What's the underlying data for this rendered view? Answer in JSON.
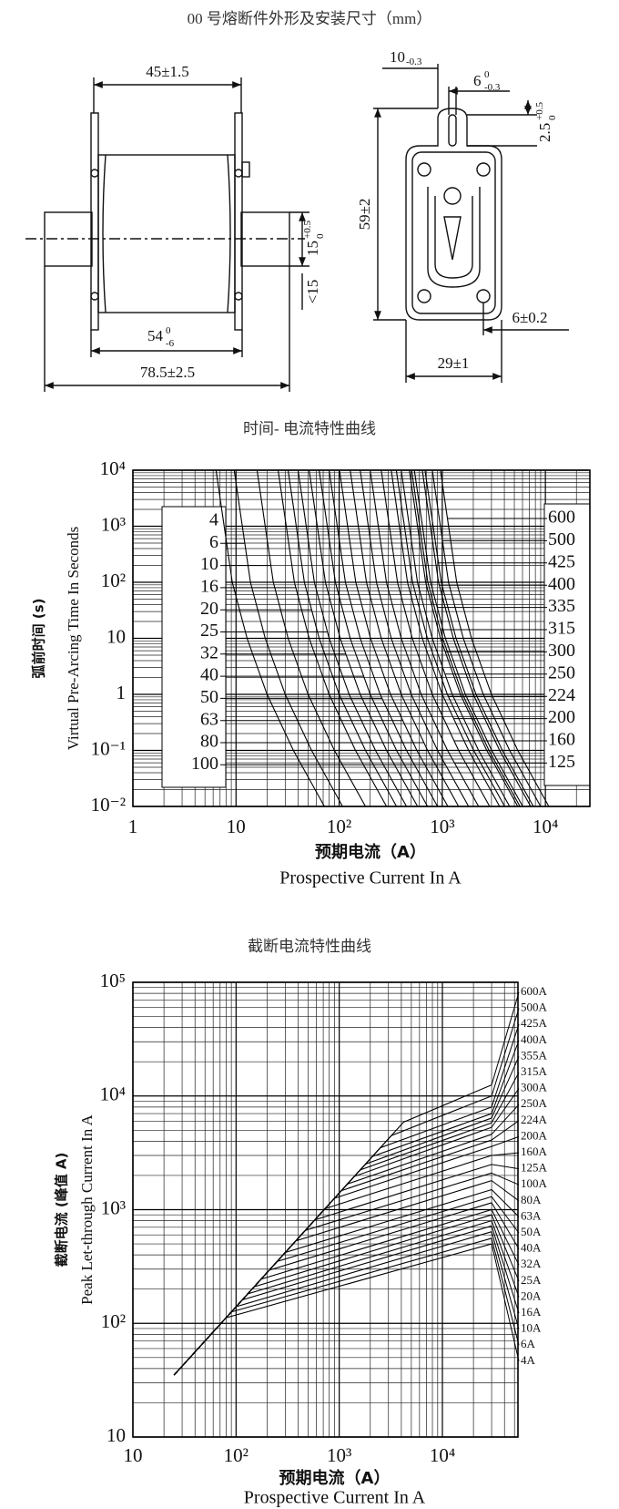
{
  "drawing": {
    "title": "00 号熔断件外形及安装尺寸（mm）",
    "dim_flange_width": "45±1.5",
    "dim_body": {
      "main": "54",
      "upper": "0",
      "lower": "-6"
    },
    "dim_overall": "78.5±2.5",
    "dim_blade": {
      "main": "15",
      "upper": "+0.5",
      "lower": "0"
    },
    "dim_blade_thickness": "<15",
    "dim_tab_width": {
      "main": "10",
      "lower": "-0.3"
    },
    "dim_slot": {
      "main": "6",
      "upper": "0",
      "lower": "-0.3"
    },
    "dim_slot_depth": {
      "main": "2.5",
      "upper": "+0.5",
      "lower": "0"
    },
    "dim_height": "59±2",
    "dim_hole": "6±0.2",
    "dim_plate_width": "29±1"
  },
  "chart_data": [
    {
      "type": "line",
      "title": "时间- 电流特性曲线",
      "x_label": "预期电流（A）",
      "x_label_en": "Prospective Current In A",
      "y_label": "弧前时间 (s)",
      "y_label_en": "Virtual Pre-Arcing Time In Seconds",
      "log_x": true,
      "log_y": true,
      "grid": true,
      "minor_grid": true,
      "color": "#000000",
      "xlim": [
        1,
        27000
      ],
      "ylim": [
        0.01,
        10000
      ],
      "xticks": [
        1,
        10,
        {
          "value": 100,
          "label": "10²"
        },
        {
          "value": 1000,
          "label": "10³"
        },
        {
          "value": 10000,
          "label": "10⁴"
        }
      ],
      "yticks": [
        {
          "value": 0.01,
          "label": "10⁻²"
        },
        {
          "value": 0.1,
          "label": "10⁻¹"
        },
        1,
        10,
        {
          "value": 100,
          "label": "10²"
        },
        {
          "value": 1000,
          "label": "10³"
        },
        {
          "value": 10000,
          "label": "10⁴"
        }
      ],
      "series": [
        {
          "name": "4",
          "x": [
            6.4,
            9.2,
            12.8,
            20,
            36,
            72
          ],
          "values": [
            10000,
            100,
            10,
            1,
            0.1,
            0.01
          ]
        },
        {
          "name": "6",
          "x": [
            9.6,
            13.8,
            19.2,
            30,
            54,
            108
          ],
          "values": [
            10000,
            100,
            10,
            1,
            0.1,
            0.01
          ]
        },
        {
          "name": "10",
          "x": [
            16,
            23,
            32,
            50,
            90,
            180
          ],
          "values": [
            10000,
            100,
            10,
            1,
            0.1,
            0.01
          ]
        },
        {
          "name": "16",
          "x": [
            25.6,
            36.8,
            51.2,
            80,
            144,
            288
          ],
          "values": [
            10000,
            100,
            10,
            1,
            0.1,
            0.01
          ]
        },
        {
          "name": "20",
          "x": [
            32,
            46,
            64,
            100,
            180,
            360
          ],
          "values": [
            10000,
            100,
            10,
            1,
            0.1,
            0.01
          ]
        },
        {
          "name": "25",
          "x": [
            40,
            57.5,
            80,
            125,
            225,
            450
          ],
          "values": [
            10000,
            100,
            10,
            1,
            0.1,
            0.01
          ]
        },
        {
          "name": "32",
          "x": [
            51.2,
            73.6,
            102.4,
            160,
            288,
            576
          ],
          "values": [
            10000,
            100,
            10,
            1,
            0.1,
            0.01
          ]
        },
        {
          "name": "40",
          "x": [
            64,
            92,
            128,
            200,
            360,
            720
          ],
          "values": [
            10000,
            100,
            10,
            1,
            0.1,
            0.01
          ]
        },
        {
          "name": "50",
          "x": [
            80,
            115,
            160,
            250,
            450,
            900
          ],
          "values": [
            10000,
            100,
            10,
            1,
            0.1,
            0.01
          ]
        },
        {
          "name": "63",
          "x": [
            100.8,
            144.9,
            201.6,
            315,
            567,
            1134
          ],
          "values": [
            10000,
            100,
            10,
            1,
            0.1,
            0.01
          ]
        },
        {
          "name": "80",
          "x": [
            128,
            184,
            256,
            400,
            720,
            1440
          ],
          "values": [
            10000,
            100,
            10,
            1,
            0.1,
            0.01
          ]
        },
        {
          "name": "100",
          "x": [
            160,
            230,
            320,
            500,
            900,
            1800
          ],
          "values": [
            10000,
            100,
            10,
            1,
            0.1,
            0.01
          ]
        },
        {
          "name": "125",
          "x": [
            200,
            287.5,
            400,
            625,
            1125,
            2250
          ],
          "values": [
            10000,
            100,
            10,
            1,
            0.1,
            0.01
          ]
        },
        {
          "name": "160",
          "x": [
            256,
            368,
            512,
            800,
            1440,
            2880
          ],
          "values": [
            10000,
            100,
            10,
            1,
            0.1,
            0.01
          ]
        },
        {
          "name": "200",
          "x": [
            320,
            460,
            640,
            1000,
            1800,
            3600
          ],
          "values": [
            10000,
            100,
            10,
            1,
            0.1,
            0.01
          ]
        },
        {
          "name": "224",
          "x": [
            358.4,
            515.2,
            716.8,
            1120,
            2016,
            4032
          ],
          "values": [
            10000,
            100,
            10,
            1,
            0.1,
            0.01
          ]
        },
        {
          "name": "250",
          "x": [
            400,
            575,
            800,
            1250,
            2250,
            4500
          ],
          "values": [
            10000,
            100,
            10,
            1,
            0.1,
            0.01
          ]
        },
        {
          "name": "300",
          "x": [
            480,
            690,
            960,
            1500,
            2700,
            5400
          ],
          "values": [
            10000,
            100,
            10,
            1,
            0.1,
            0.01
          ]
        },
        {
          "name": "315",
          "x": [
            504,
            724.5,
            1008,
            1575,
            2835,
            5670
          ],
          "values": [
            10000,
            100,
            10,
            1,
            0.1,
            0.01
          ]
        },
        {
          "name": "335",
          "x": [
            536,
            770.5,
            1072,
            1675,
            3015,
            6030
          ],
          "values": [
            10000,
            100,
            10,
            1,
            0.1,
            0.01
          ]
        },
        {
          "name": "400",
          "x": [
            640,
            920,
            1280,
            2000,
            3600,
            7200
          ],
          "values": [
            10000,
            100,
            10,
            1,
            0.1,
            0.01
          ]
        },
        {
          "name": "425",
          "x": [
            680,
            977.5,
            1360,
            2125,
            3825,
            7650
          ],
          "values": [
            10000,
            100,
            10,
            1,
            0.1,
            0.01
          ]
        },
        {
          "name": "500",
          "x": [
            800,
            1150,
            1600,
            2500,
            4500,
            9000
          ],
          "values": [
            10000,
            100,
            10,
            1,
            0.1,
            0.01
          ]
        },
        {
          "name": "600",
          "x": [
            960,
            1380,
            1920,
            3000,
            5400,
            10800
          ],
          "values": [
            10000,
            100,
            10,
            1,
            0.1,
            0.01
          ]
        }
      ]
    },
    {
      "type": "line",
      "title": "截断电流特性曲线",
      "x_label": "预期电流（A）",
      "x_label_en": "Prospective Current In A",
      "y_label": "截断电流 (峰值 A)",
      "y_label_en": "Peak Let-through Current In A",
      "log_x": true,
      "log_y": true,
      "grid": true,
      "minor_grid": true,
      "color": "#000000",
      "xlim": [
        10,
        54000
      ],
      "ylim": [
        10,
        100000
      ],
      "xticks": [
        10,
        {
          "value": 100,
          "label": "10²"
        },
        {
          "value": 1000,
          "label": "10³"
        },
        {
          "value": 10000,
          "label": "10⁴"
        }
      ],
      "yticks": [
        10,
        {
          "value": 100,
          "label": "10²"
        },
        {
          "value": 1000,
          "label": "10³"
        },
        {
          "value": 10000,
          "label": "10⁴"
        },
        {
          "value": 100000,
          "label": "10⁵"
        }
      ],
      "series": [
        {
          "name": "4A",
          "x": [
            25,
            80,
            30000
          ],
          "values": [
            35,
            112,
            500
          ]
        },
        {
          "name": "6A",
          "x": [
            25,
            90,
            30000
          ],
          "values": [
            35,
            126,
            560
          ]
        },
        {
          "name": "10A",
          "x": [
            25,
            100,
            30000
          ],
          "values": [
            35,
            140,
            640
          ]
        },
        {
          "name": "16A",
          "x": [
            25,
            115,
            30000
          ],
          "values": [
            35,
            161,
            720
          ]
        },
        {
          "name": "20A",
          "x": [
            25,
            130,
            30000
          ],
          "values": [
            35,
            182,
            800
          ]
        },
        {
          "name": "25A",
          "x": [
            25,
            150,
            30000
          ],
          "values": [
            35,
            210,
            900
          ]
        },
        {
          "name": "32A",
          "x": [
            25,
            175,
            30000
          ],
          "values": [
            35,
            245,
            1000
          ]
        },
        {
          "name": "40A",
          "x": [
            25,
            210,
            30000
          ],
          "values": [
            35,
            294,
            1150
          ]
        },
        {
          "name": "50A",
          "x": [
            25,
            250,
            30000
          ],
          "values": [
            35,
            350,
            1300
          ]
        },
        {
          "name": "63A",
          "x": [
            25,
            300,
            30000
          ],
          "values": [
            35,
            420,
            1500
          ]
        },
        {
          "name": "80A",
          "x": [
            25,
            380,
            30000
          ],
          "values": [
            35,
            532,
            1800
          ]
        },
        {
          "name": "100A",
          "x": [
            25,
            470,
            30000
          ],
          "values": [
            35,
            658,
            2100
          ]
        },
        {
          "name": "125A",
          "x": [
            25,
            580,
            30000
          ],
          "values": [
            35,
            812,
            2500
          ]
        },
        {
          "name": "160A",
          "x": [
            25,
            730,
            30000
          ],
          "values": [
            35,
            1022,
            3000
          ]
        },
        {
          "name": "200A",
          "x": [
            25,
            900,
            30000
          ],
          "values": [
            35,
            1260,
            3600
          ]
        },
        {
          "name": "224A",
          "x": [
            25,
            1050,
            30000
          ],
          "values": [
            35,
            1470,
            4100
          ]
        },
        {
          "name": "250A",
          "x": [
            25,
            1200,
            30000
          ],
          "values": [
            35,
            1680,
            4600
          ]
        },
        {
          "name": "300A",
          "x": [
            25,
            1400,
            30000
          ],
          "values": [
            35,
            1960,
            5300
          ]
        },
        {
          "name": "315A",
          "x": [
            25,
            1600,
            30000
          ],
          "values": [
            35,
            2240,
            5800
          ]
        },
        {
          "name": "355A",
          "x": [
            25,
            1800,
            30000
          ],
          "values": [
            35,
            2520,
            6400
          ]
        },
        {
          "name": "400A",
          "x": [
            25,
            2100,
            30000
          ],
          "values": [
            35,
            2940,
            7000
          ]
        },
        {
          "name": "425A",
          "x": [
            25,
            2500,
            30000
          ],
          "values": [
            35,
            3500,
            8000
          ]
        },
        {
          "name": "500A",
          "x": [
            25,
            3200,
            30000
          ],
          "values": [
            35,
            4480,
            10000
          ]
        },
        {
          "name": "600A",
          "x": [
            25,
            4200,
            30000
          ],
          "values": [
            35,
            5880,
            12500
          ]
        }
      ]
    }
  ]
}
